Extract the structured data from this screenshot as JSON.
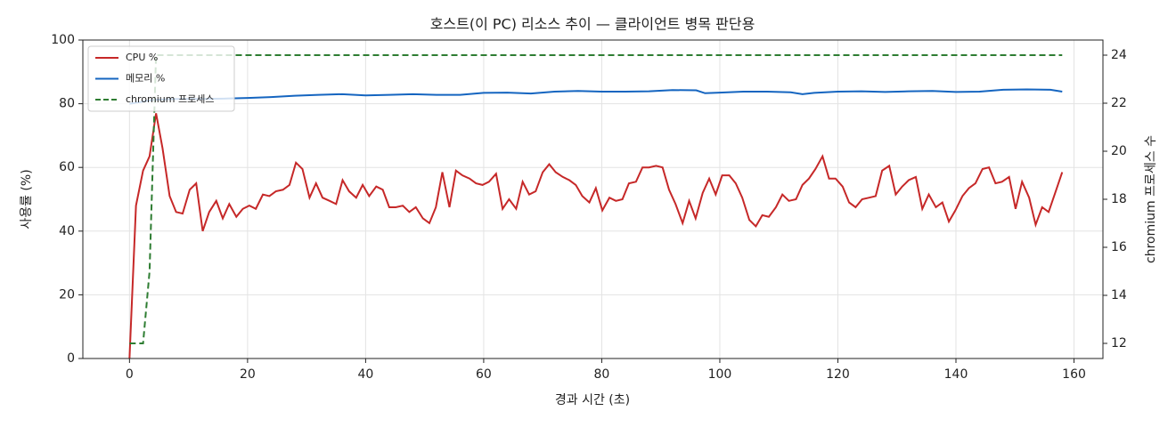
{
  "chart_data": {
    "type": "line",
    "title": "호스트(이 PC) 리소스 추이 — 클라이언트 병목 판단용",
    "xlabel": "경과 시간 (초)",
    "ylabel": "사용률 (%)",
    "y2label": "chromium 프로세스 수",
    "xlim": [
      -7.9,
      164.9
    ],
    "xticks": [
      0,
      20,
      40,
      60,
      80,
      100,
      120,
      140,
      160
    ],
    "ylim": [
      0,
      100
    ],
    "yticks": [
      0,
      20,
      40,
      60,
      80,
      100
    ],
    "y2lim": [
      11.37,
      24.63
    ],
    "y2ticks": [
      12,
      14,
      16,
      18,
      20,
      22,
      24
    ],
    "grid": true,
    "legend": "upper left",
    "series": [
      {
        "name": "CPU %",
        "color": "#c62828",
        "linestyle": "solid",
        "x": [
          0,
          1.1,
          2.3,
          3.4,
          4.5,
          5.6,
          6.8,
          7.9,
          9.0,
          10.2,
          11.3,
          12.4,
          13.5,
          14.7,
          15.8,
          16.9,
          18.1,
          19.2,
          20.3,
          21.4,
          22.6,
          23.7,
          24.8,
          26.0,
          27.1,
          28.2,
          29.3,
          30.5,
          31.6,
          32.7,
          33.9,
          35.0,
          36.1,
          37.2,
          38.4,
          39.5,
          40.6,
          41.8,
          42.9,
          44.0,
          45.1,
          46.3,
          47.4,
          48.5,
          49.7,
          50.8,
          51.9,
          53.0,
          54.2,
          55.3,
          56.4,
          57.6,
          58.7,
          59.8,
          60.9,
          62.1,
          63.2,
          64.3,
          65.5,
          66.6,
          67.7,
          68.8,
          70.0,
          71.1,
          72.2,
          73.4,
          74.5,
          75.6,
          76.7,
          77.9,
          79.0,
          80.1,
          81.3,
          82.4,
          83.5,
          84.6,
          85.8,
          86.9,
          88.0,
          89.2,
          90.3,
          91.4,
          92.5,
          93.7,
          94.8,
          95.9,
          97.1,
          98.2,
          99.3,
          100.4,
          101.6,
          102.7,
          103.8,
          105.0,
          106.1,
          107.2,
          108.3,
          109.5,
          110.6,
          111.7,
          112.9,
          114.0,
          115.1,
          116.2,
          117.4,
          118.5,
          119.6,
          120.8,
          121.9,
          123.0,
          124.1,
          125.3,
          126.4,
          127.5,
          128.7,
          129.8,
          130.9,
          132.0,
          133.2,
          134.3,
          135.4,
          136.6,
          137.7,
          138.8,
          139.9,
          141.1,
          142.2,
          143.3,
          144.5,
          145.6,
          146.7,
          147.8,
          149.0,
          150.1,
          151.2,
          152.4,
          153.5,
          154.6,
          155.7,
          156.9,
          158.0
        ],
        "values": [
          0,
          48,
          59,
          63.5,
          77,
          66,
          51,
          46,
          45.5,
          53,
          55,
          40,
          46,
          49.5,
          44,
          48.5,
          44.5,
          47,
          48,
          47,
          51.5,
          51,
          52.5,
          53,
          54.5,
          61.5,
          59.5,
          50.5,
          55,
          50.5,
          49.5,
          48.5,
          56,
          52.5,
          50.5,
          54.5,
          51,
          54,
          53,
          47.5,
          47.5,
          48,
          46,
          47.5,
          44,
          42.5,
          47.5,
          58.5,
          47.5,
          59,
          57.5,
          56.5,
          55,
          54.5,
          55.5,
          58,
          47,
          50,
          47,
          55.5,
          51.5,
          52.5,
          58.5,
          61,
          58.5,
          57,
          56,
          54.5,
          51,
          49,
          53.5,
          46.5,
          50.5,
          49.5,
          50,
          55,
          55.5,
          60,
          60,
          60.5,
          60,
          53,
          48.5,
          42.5,
          49.5,
          44,
          52,
          56.5,
          51.5,
          57.5,
          57.5,
          55,
          50.5,
          43.5,
          41.5,
          45,
          44.5,
          47.5,
          51.5,
          49.5,
          50,
          54.5,
          56.5,
          59.5,
          63.5,
          56.5,
          56.5,
          54,
          49,
          47.5,
          50,
          50.5,
          51,
          59,
          60.5,
          51.5,
          54,
          56,
          57,
          47,
          51.5,
          47.5,
          49,
          43,
          46.5,
          51,
          53.5,
          55,
          59.5,
          60,
          55,
          55.5,
          57,
          47,
          55.5,
          50.5,
          42,
          47.5,
          46,
          52.5,
          58.5
        ]
      },
      {
        "name": "메모리 %",
        "color": "#1565c0",
        "linestyle": "solid",
        "x": [
          0,
          4,
          8,
          12,
          16,
          20,
          24,
          28,
          32,
          36,
          40,
          44,
          48,
          52,
          56,
          60,
          64,
          68,
          72,
          76,
          80,
          84,
          88,
          92,
          96,
          97.5,
          100,
          104,
          108,
          112,
          114,
          116,
          120,
          124,
          128,
          132,
          136,
          140,
          144,
          148,
          152,
          156,
          158
        ],
        "values": [
          80,
          81.2,
          81.5,
          81.5,
          81.6,
          81.8,
          82.1,
          82.5,
          82.8,
          83,
          82.6,
          82.8,
          83,
          82.8,
          82.8,
          83.4,
          83.5,
          83.2,
          83.8,
          84,
          83.8,
          83.8,
          83.9,
          84.3,
          84.2,
          83.3,
          83.5,
          83.8,
          83.8,
          83.6,
          83.0,
          83.4,
          83.8,
          83.9,
          83.7,
          83.9,
          84.0,
          83.7,
          83.8,
          84.4,
          84.5,
          84.4,
          83.8
        ]
      },
      {
        "name": "chromium 프로세스",
        "color": "#2e7d32",
        "linestyle": "dashed",
        "axis": "y2",
        "x": [
          0,
          2.3,
          3.4,
          4.5,
          158
        ],
        "values": [
          12,
          12,
          15,
          24,
          24
        ]
      }
    ]
  }
}
